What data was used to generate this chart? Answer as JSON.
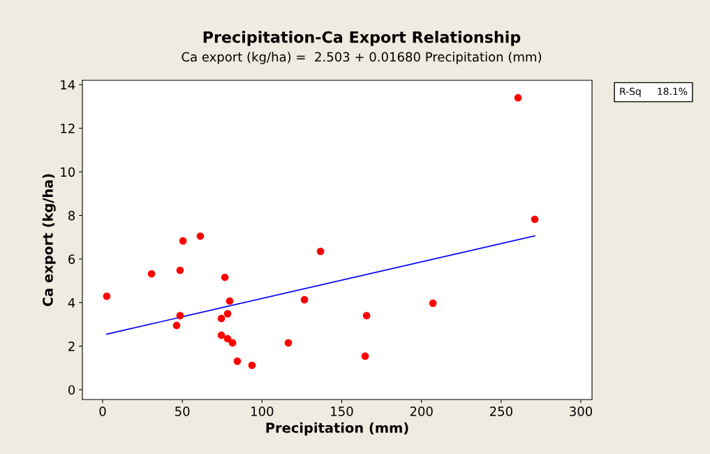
{
  "chart_data": {
    "type": "scatter",
    "title": "Precipitation-Ca Export Relationship",
    "subtitle": "Ca export (kg/ha) =  2.503 + 0.01680 Precipitation (mm)",
    "xlabel": "Precipitation (mm)",
    "ylabel": "Ca export (kg/ha)",
    "series": [
      {
        "marker": "circle",
        "color": "#ff0000",
        "x": [
          2.6,
          30.7,
          50.4,
          61.3,
          48.6,
          46.4,
          48.6,
          76.7,
          74.5,
          78.4,
          79.7,
          74.5,
          78.4,
          81.5,
          84.5,
          93.7,
          116.5,
          126.6,
          136.7,
          165.6,
          164.7,
          207.2,
          260.6,
          271.1
        ],
        "values": [
          4.29,
          5.32,
          6.83,
          7.05,
          5.48,
          2.95,
          3.4,
          5.16,
          3.27,
          3.49,
          4.07,
          2.5,
          2.34,
          2.15,
          1.31,
          1.12,
          2.15,
          4.13,
          6.35,
          3.4,
          1.54,
          3.97,
          13.4,
          7.82
        ]
      },
      {
        "type": "line",
        "marker": "none",
        "color": "#0000ff",
        "x": [
          2.6,
          271.1
        ],
        "values": [
          2.55,
          7.06
        ]
      }
    ],
    "xlim": [
      -12.7,
      307
    ],
    "ylim": [
      -0.45,
      14.2
    ],
    "xticks": [
      0,
      50,
      100,
      150,
      200,
      250,
      300
    ],
    "yticks": [
      0,
      2,
      4,
      6,
      8,
      10,
      12,
      14
    ],
    "grid": false,
    "legend": false,
    "annotations": [
      "R-Sq     18.1%"
    ]
  }
}
